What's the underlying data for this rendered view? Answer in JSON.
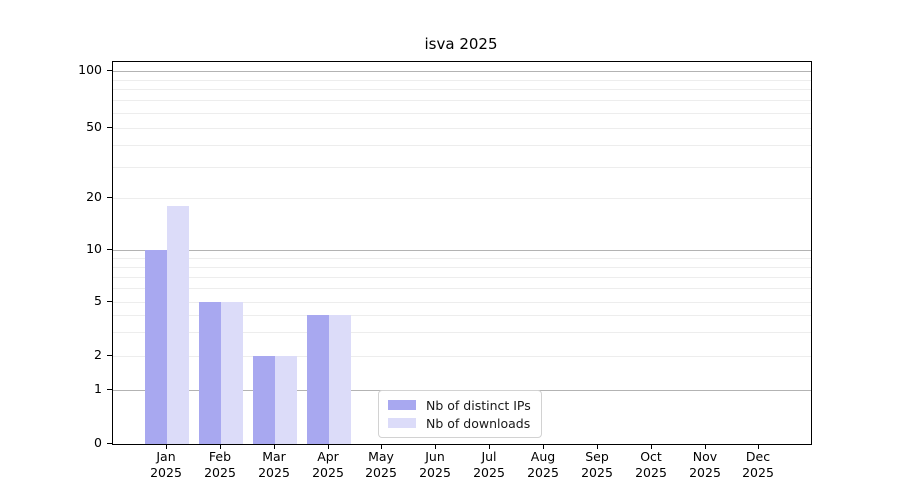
{
  "title": "isva 2025",
  "chart_data": {
    "type": "bar",
    "title": "isva 2025",
    "categories": [
      "Jan",
      "Feb",
      "Mar",
      "Apr",
      "May",
      "Jun",
      "Jul",
      "Aug",
      "Sep",
      "Oct",
      "Nov",
      "Dec"
    ],
    "category_year_line": "2025",
    "series": [
      {
        "name": "Nb of distinct IPs",
        "color": "#a8a8f0",
        "values": [
          10,
          5,
          2,
          4,
          0,
          0,
          0,
          0,
          0,
          0,
          0,
          0
        ]
      },
      {
        "name": "Nb of downloads",
        "color": "#dcdcf9",
        "values": [
          18,
          5,
          2,
          4,
          0,
          0,
          0,
          0,
          0,
          0,
          0,
          0
        ]
      }
    ],
    "xlabel": "",
    "ylabel": "",
    "yscale": "symlog",
    "ylim": [
      0,
      100
    ],
    "y_ticks": [
      0,
      1,
      2,
      5,
      10,
      20,
      50,
      100
    ],
    "y_major_gridlines": [
      1,
      10,
      100
    ],
    "y_minor_gridlines": [
      2,
      3,
      4,
      5,
      6,
      7,
      8,
      9,
      20,
      30,
      40,
      50,
      60,
      70,
      80,
      90
    ],
    "grid": true,
    "legend_position": "inside lower center"
  },
  "colors": {
    "background": "#ffffff",
    "axis": "#000000",
    "major_grid": "#b3b3b3",
    "minor_grid": "#ededed",
    "series_dark": "#a8a8f0",
    "series_light": "#dcdcf9"
  }
}
